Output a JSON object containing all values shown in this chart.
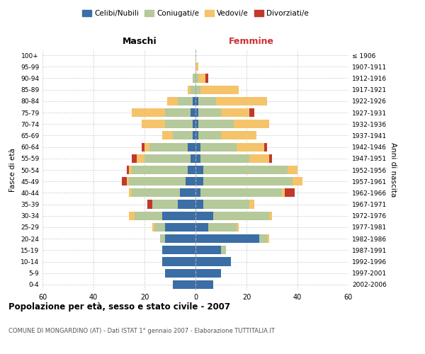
{
  "age_groups": [
    "0-4",
    "5-9",
    "10-14",
    "15-19",
    "20-24",
    "25-29",
    "30-34",
    "35-39",
    "40-44",
    "45-49",
    "50-54",
    "55-59",
    "60-64",
    "65-69",
    "70-74",
    "75-79",
    "80-84",
    "85-89",
    "90-94",
    "95-99",
    "100+"
  ],
  "birth_years": [
    "2002-2006",
    "1997-2001",
    "1992-1996",
    "1987-1991",
    "1982-1986",
    "1977-1981",
    "1972-1976",
    "1967-1971",
    "1962-1966",
    "1957-1961",
    "1952-1956",
    "1947-1951",
    "1942-1946",
    "1937-1941",
    "1932-1936",
    "1927-1931",
    "1922-1926",
    "1917-1921",
    "1912-1916",
    "1907-1911",
    "≤ 1906"
  ],
  "maschi": {
    "celibi": [
      9,
      12,
      13,
      13,
      12,
      12,
      13,
      7,
      6,
      4,
      3,
      2,
      3,
      1,
      1,
      2,
      1,
      0,
      0,
      0,
      0
    ],
    "coniugati": [
      0,
      0,
      0,
      0,
      2,
      4,
      11,
      10,
      19,
      22,
      22,
      18,
      15,
      8,
      11,
      10,
      6,
      2,
      1,
      0,
      0
    ],
    "vedovi": [
      0,
      0,
      0,
      0,
      0,
      1,
      2,
      0,
      1,
      1,
      1,
      3,
      2,
      4,
      9,
      13,
      4,
      1,
      0,
      0,
      0
    ],
    "divorziati": [
      0,
      0,
      0,
      0,
      0,
      0,
      0,
      2,
      0,
      2,
      1,
      2,
      1,
      0,
      0,
      0,
      0,
      0,
      0,
      0,
      0
    ]
  },
  "femmine": {
    "nubili": [
      7,
      10,
      14,
      10,
      25,
      5,
      7,
      3,
      2,
      3,
      3,
      2,
      2,
      1,
      1,
      1,
      1,
      0,
      0,
      0,
      0
    ],
    "coniugate": [
      0,
      0,
      0,
      2,
      3,
      11,
      22,
      18,
      32,
      35,
      33,
      19,
      14,
      9,
      14,
      9,
      7,
      2,
      1,
      0,
      0
    ],
    "vedove": [
      0,
      0,
      0,
      0,
      1,
      1,
      1,
      2,
      1,
      4,
      4,
      8,
      11,
      14,
      14,
      11,
      20,
      15,
      3,
      1,
      0
    ],
    "divorziate": [
      0,
      0,
      0,
      0,
      0,
      0,
      0,
      0,
      4,
      0,
      0,
      1,
      1,
      0,
      0,
      2,
      0,
      0,
      1,
      0,
      0
    ]
  },
  "colors": {
    "celibi": "#3B6EA5",
    "coniugati": "#B5C99A",
    "vedovi": "#F4C36A",
    "divorziati": "#C0392B"
  },
  "title": "Popolazione per età, sesso e stato civile - 2007",
  "subtitle": "COMUNE DI MONGARDINO (AT) - Dati ISTAT 1° gennaio 2007 - Elaborazione TUTTITALIA.IT",
  "xlabel_left": "Maschi",
  "xlabel_right": "Femmine",
  "ylabel_left": "Fasce di età",
  "ylabel_right": "Anni di nascita",
  "xlim": 60,
  "legend_labels": [
    "Celibi/Nubili",
    "Coniugati/e",
    "Vedovi/e",
    "Divorziati/e"
  ]
}
